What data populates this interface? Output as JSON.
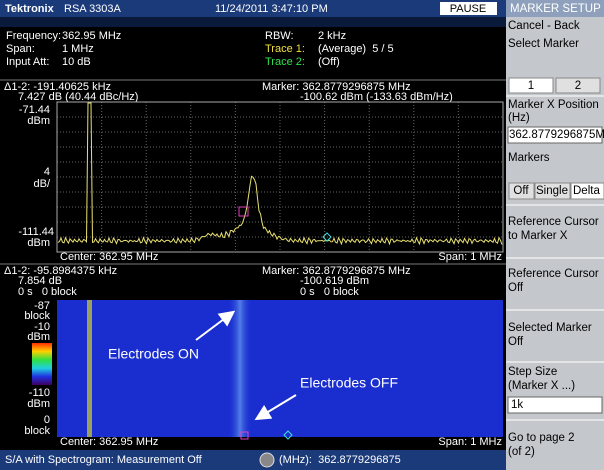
{
  "header": {
    "brand": "Tektronix",
    "model": "RSA 3303A",
    "datetime": "11/24/2011 3:47:10 PM",
    "pause_button": "PAUSE"
  },
  "settings": {
    "frequency": {
      "label": "Frequency:",
      "value": "362.95 MHz"
    },
    "span": {
      "label": "Span:",
      "value": "1 MHz"
    },
    "input_att": {
      "label": "Input Att:",
      "value": "10 dB"
    },
    "rbw": {
      "label": "RBW:",
      "value": "2 kHz"
    },
    "trace1": {
      "label": "Trace 1:",
      "value": "(Average)  5 / 5"
    },
    "trace2": {
      "label": "Trace 2:",
      "value": "(Off)"
    }
  },
  "spectrum": {
    "delta": "Δ1-2: -191.40625 kHz",
    "delta_level": "7.427 dB (40.44 dBc/Hz)",
    "marker": "Marker: 362.8779296875 MHz",
    "marker_level": "-100.62 dBm (-133.63 dBm/Hz)",
    "ref_level": "-71.44",
    "ref_unit": "dBm",
    "scale": "4",
    "scale_unit": "dB/",
    "bottom_level": "-111.44",
    "bottom_unit": "dBm",
    "center": "Center: 362.95 MHz",
    "span": "Span: 1 MHz"
  },
  "spectrogram": {
    "delta": "Δ1-2: -95.8984375 kHz",
    "delta_level": "7.854 dB",
    "delta_time": "0 s   0 block",
    "marker": "Marker: 362.8779296875 MHz",
    "marker_level": "-100.619 dBm",
    "marker_time": "0 s   0 block",
    "top_block": "-87",
    "top_block_unit": "block",
    "color_top": "-10",
    "color_top_unit": "dBm",
    "color_bottom": "-110",
    "color_bottom_unit": "dBm",
    "bottom_block": "0",
    "bottom_block_unit": "block",
    "center": "Center: 362.95 MHz",
    "span": "Span: 1 MHz",
    "annotations": [
      "Electrodes ON",
      "Electrodes OFF"
    ]
  },
  "status_bar": {
    "mode": "S/A with Spectrogram: Measurement Off",
    "readout": "(MHz):  362.8779296875"
  },
  "side_panel": {
    "title": "MARKER SETUP",
    "cancel_back": "Cancel - Back",
    "select_marker": "Select Marker",
    "marker_buttons": [
      "1",
      "2"
    ],
    "marker_x_position": [
      "Marker X Position",
      "(Hz)"
    ],
    "marker_x_value": "362.8779296875M",
    "markers": "Markers",
    "marker_modes": [
      "Off",
      "Single",
      "Delta"
    ],
    "ref_to_marker": [
      "Reference Cursor",
      "to Marker X"
    ],
    "ref_off": [
      "Reference Cursor",
      "Off"
    ],
    "selected_off": [
      "Selected Marker",
      "Off"
    ],
    "step_size": [
      "Step Size",
      "(Marker X ...)"
    ],
    "step_value": "1k",
    "next_page": [
      "Go to page 2",
      "(of 2)"
    ]
  }
}
